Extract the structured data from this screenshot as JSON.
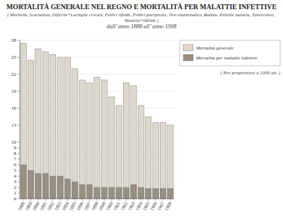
{
  "chart_data": {
    "type": "bar",
    "title": "MORTALITÀ GENERALE NEL REGNO E MORTALITÀ PER MALATTIE INFETTIVE",
    "subtitle": [
      "( Morbella, Scarlattina, Difterite+Laringite crurale, Febbri tifoide, Febbri puerperale, Tiro esantematico, Rabbia, Pettolie malaria, Tubercolosi, Malaria+Sifilide )",
      "dall’ anno 1888 all’ anno 1908"
    ],
    "annotations": [
      "( Per proporzioni a 1000 ab. )"
    ],
    "categories": [
      "1888",
      "1889",
      "1890",
      "1891",
      "1892",
      "1893",
      "1894",
      "1895",
      "1896",
      "1897",
      "1898",
      "1899",
      "1900",
      "1901",
      "1902",
      "1903",
      "1904",
      "1905",
      "1906",
      "1907",
      "1908"
    ],
    "series": [
      {
        "name": "Mortalità generale",
        "color": "#ddd8cc",
        "values": [
          27.5,
          24.5,
          26.5,
          26.0,
          25.5,
          25.0,
          25.0,
          23.0,
          21.0,
          20.5,
          21.5,
          21.0,
          18.0,
          16.5,
          20.5,
          20.0,
          16.5,
          14.5,
          13.5,
          13.5,
          13.0
        ]
      },
      {
        "name": "Mortalità per malattie infettive",
        "color": "#999080",
        "values": [
          6.0,
          5.0,
          4.5,
          4.5,
          4.0,
          4.0,
          3.5,
          3.0,
          2.5,
          2.5,
          2.0,
          2.0,
          2.0,
          2.0,
          2.0,
          2.5,
          2.0,
          1.8,
          1.8,
          1.8,
          1.8
        ]
      }
    ],
    "ylim": [
      0,
      28
    ],
    "yticks": [
      0,
      1,
      2,
      3,
      4,
      5,
      6,
      7,
      8,
      9,
      10,
      13,
      16,
      19,
      22,
      25,
      28
    ],
    "grid": true,
    "legend": "right"
  }
}
